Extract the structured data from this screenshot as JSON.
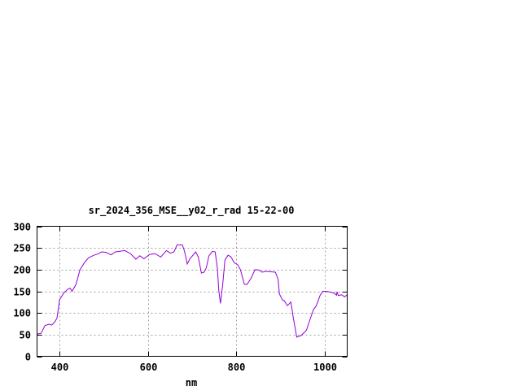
{
  "chart_data": {
    "type": "line",
    "title": "sr_2024_356_MSE__y02_r_rad 15-22-00",
    "xlabel": "nm",
    "ylabel": "",
    "xlim": [
      350,
      1050
    ],
    "ylim": [
      0,
      300
    ],
    "xticks": [
      400,
      600,
      800,
      1000
    ],
    "yticks": [
      0,
      50,
      100,
      150,
      200,
      250,
      300
    ],
    "grid": true,
    "legend": "none",
    "line_color": "#9400d3",
    "series": [
      {
        "x": [
          350,
          359,
          368,
          377,
          383,
          389,
          395,
          401,
          411,
          420,
          425,
          429,
          438,
          447,
          457,
          466,
          478,
          487,
          496,
          505,
          517,
          527,
          548,
          561,
          573,
          582,
          591,
          604,
          616,
          629,
          642,
          651,
          659,
          666,
          678,
          683,
          689,
          695,
          708,
          714,
          721,
          727,
          732,
          738,
          746,
          752,
          757,
          760,
          764,
          769,
          774,
          781,
          787,
          795,
          803,
          809,
          818,
          824,
          833,
          842,
          851,
          858,
          867,
          888,
          894,
          897,
          904,
          908,
          915,
          923,
          928,
          936,
          946,
          958,
          968,
          974,
          980,
          989,
          995,
          1001,
          1007,
          1020,
          1026,
          1027,
          1030,
          1038,
          1044,
          1050
        ],
        "y": [
          51,
          53,
          71,
          74,
          72,
          78,
          88,
          131,
          147,
          155,
          157,
          150,
          166,
          200,
          216,
          227,
          233,
          236,
          241,
          240,
          234,
          241,
          244,
          237,
          224,
          232,
          225,
          235,
          237,
          229,
          244,
          238,
          241,
          257,
          257,
          242,
          213,
          225,
          241,
          229,
          192,
          194,
          204,
          232,
          242,
          241,
          204,
          153,
          122,
          166,
          222,
          233,
          230,
          216,
          211,
          200,
          166,
          166,
          180,
          200,
          199,
          194,
          196,
          194,
          178,
          144,
          130,
          128,
          117,
          125,
          91,
          44,
          48,
          60,
          91,
          108,
          116,
          141,
          150,
          150,
          149,
          146,
          141,
          149,
          140,
          142,
          137,
          142
        ]
      }
    ]
  }
}
